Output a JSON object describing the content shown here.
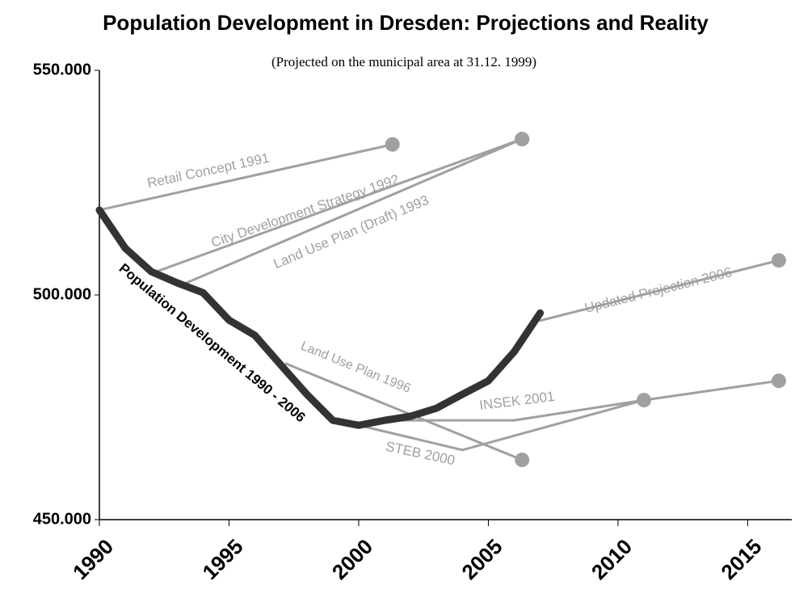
{
  "chart_data": {
    "type": "line",
    "title": "Population Development in Dresden: Projections and Reality",
    "subtitle": "(Projected on the municipal area at 31.12. 1999)",
    "xlim": [
      1990,
      2016.7
    ],
    "xticks": [
      1990,
      1995,
      2000,
      2005,
      2010,
      2015
    ],
    "ylim": [
      450000,
      550000
    ],
    "yticks": [
      {
        "value": 450000,
        "label": "450.000"
      },
      {
        "value": 500000,
        "label": "500.000"
      },
      {
        "value": 550000,
        "label": "550.000"
      }
    ],
    "series": [
      {
        "name": "Population Development 1990 - 2006",
        "color": "#333333",
        "x": [
          1990,
          1991,
          1992,
          1993,
          1994,
          1995,
          1996,
          1997,
          1998,
          1999,
          2000,
          2001,
          2002,
          2003,
          2004,
          2005,
          2006,
          2007
        ],
        "values": [
          518900,
          510400,
          505200,
          502700,
          500500,
          494400,
          491000,
          484400,
          477900,
          472100,
          471000,
          472100,
          473000,
          474800,
          477900,
          480900,
          487400,
          496000
        ]
      },
      {
        "name": "Retail Concept 1991",
        "color": "#a0a0a0",
        "x": [
          1990,
          2001.3
        ],
        "values": [
          518900,
          533500
        ]
      },
      {
        "name": "City Development Strategy 1992",
        "color": "#a0a0a0",
        "x": [
          1992.2,
          2006.3
        ],
        "values": [
          505200,
          534700
        ]
      },
      {
        "name": "Land Use Plan (Draft) 1993",
        "color": "#a0a0a0",
        "x": [
          1993.2,
          2006.3
        ],
        "values": [
          502300,
          534700
        ]
      },
      {
        "name": "Updated Projection 2006",
        "color": "#a0a0a0",
        "x": [
          2007,
          2016.2
        ],
        "values": [
          494300,
          507700
        ]
      },
      {
        "name": "Land Use Plan 1996",
        "color": "#a0a0a0",
        "x": [
          1997.2,
          2006.3
        ],
        "values": [
          484700,
          463300
        ]
      },
      {
        "name": "INSEK 2001",
        "color": "#a0a0a0",
        "x": [
          2001,
          2006,
          2011,
          2016.2
        ],
        "values": [
          472100,
          472100,
          476600,
          480900
        ]
      },
      {
        "name": "STEB 2000",
        "color": "#a0a0a0",
        "x": [
          2000,
          2004,
          2011
        ],
        "values": [
          471000,
          465500,
          476600
        ]
      }
    ]
  }
}
